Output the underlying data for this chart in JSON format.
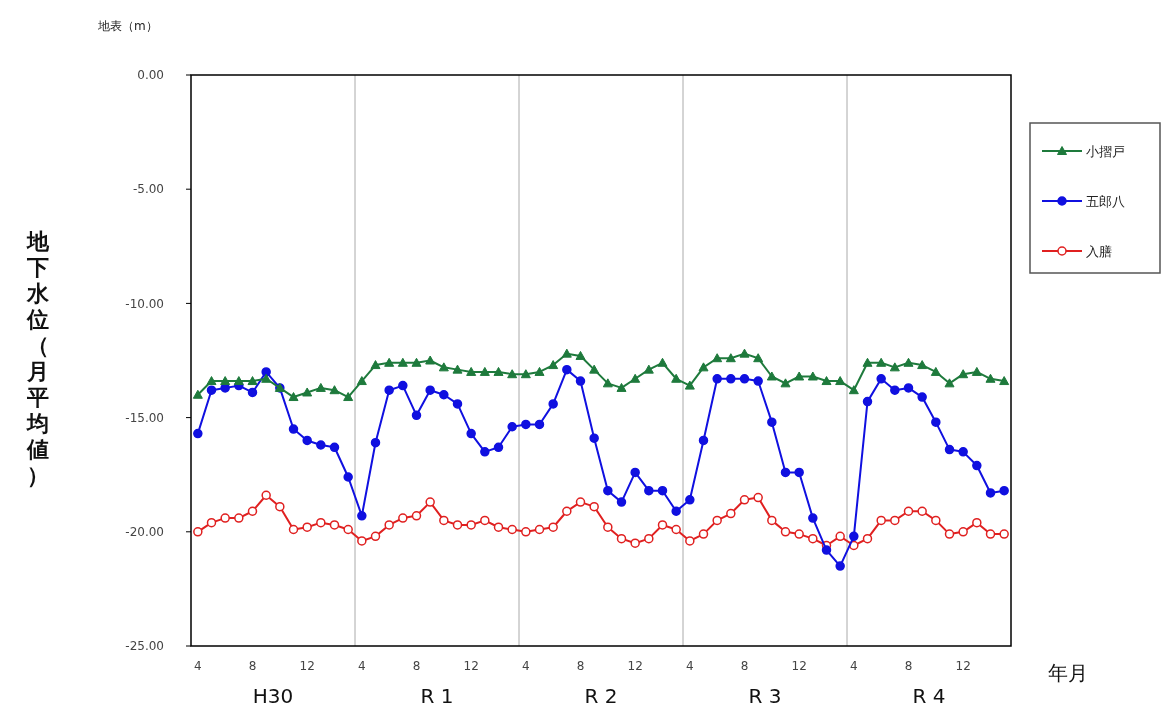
{
  "chart_data": {
    "type": "line",
    "xlabel": "年月",
    "ylabel": "地下水位（月平均値）",
    "annotations": [
      "地表（m）",
      "H30",
      "R 1",
      "R 2",
      "R 3",
      "R 4"
    ],
    "categories": [
      "4",
      null,
      null,
      null,
      "8",
      null,
      null,
      null,
      "12",
      null,
      null,
      null,
      "4",
      null,
      null,
      null,
      "8",
      null,
      null,
      null,
      "12",
      null,
      null,
      null,
      "4",
      null,
      null,
      null,
      "8",
      null,
      null,
      null,
      "12",
      null,
      null,
      null,
      "4",
      null,
      null,
      null,
      "8",
      null,
      null,
      null,
      "12",
      null,
      null,
      null,
      "4",
      null,
      null,
      null,
      "8",
      null,
      null,
      null,
      "12",
      null,
      null,
      null
    ],
    "ylim": [
      -25,
      0
    ],
    "yticks": [
      {
        "value": 0,
        "label": "0.00"
      },
      {
        "value": -5,
        "label": "-5.00"
      },
      {
        "value": -10,
        "label": "-10.00"
      },
      {
        "value": -15,
        "label": "-15.00"
      },
      {
        "value": -20,
        "label": "-20.00"
      },
      {
        "value": -25,
        "label": "-25.00"
      }
    ],
    "legend": "top right",
    "grid": false,
    "series": [
      {
        "name": "小摺戸",
        "color": "#1e7a3c",
        "marker": "triangle",
        "values": [
          -14.0,
          -13.4,
          -13.4,
          -13.4,
          -13.4,
          -13.3,
          -13.7,
          -14.1,
          -13.9,
          -13.7,
          -13.8,
          -14.1,
          -13.4,
          -12.7,
          -12.6,
          -12.6,
          -12.6,
          -12.5,
          -12.8,
          -12.9,
          -13.0,
          -13.0,
          -13.0,
          -13.1,
          -13.1,
          -13.0,
          -12.7,
          -12.2,
          -12.3,
          -12.9,
          -13.5,
          -13.7,
          -13.3,
          -12.9,
          -12.6,
          -13.3,
          -13.6,
          -12.8,
          -12.4,
          -12.4,
          -12.2,
          -12.4,
          -13.2,
          -13.5,
          -13.2,
          -13.2,
          -13.4,
          -13.4,
          -13.8,
          -12.6,
          -12.6,
          -12.8,
          -12.6,
          -12.7,
          -13.0,
          -13.5,
          -13.1,
          -13.0,
          -13.3,
          -13.4
        ]
      },
      {
        "name": "五郎八",
        "color": "#1010e0",
        "marker": "circle",
        "values": [
          -15.7,
          -13.8,
          -13.7,
          -13.6,
          -13.9,
          -13.0,
          -13.7,
          -15.5,
          -16.0,
          -16.2,
          -16.3,
          -17.6,
          -19.3,
          -16.1,
          -13.8,
          -13.6,
          -14.9,
          -13.8,
          -14.0,
          -14.4,
          -15.7,
          -16.5,
          -16.3,
          -15.4,
          -15.3,
          -15.3,
          -14.4,
          -12.9,
          -13.4,
          -15.9,
          -18.2,
          -18.7,
          -17.4,
          -18.2,
          -18.2,
          -19.1,
          -18.6,
          -16.0,
          -13.3,
          -13.3,
          -13.3,
          -13.4,
          -15.2,
          -17.4,
          -17.4,
          -19.4,
          -20.8,
          -21.5,
          -20.2,
          -14.3,
          -13.3,
          -13.8,
          -13.7,
          -14.1,
          -15.2,
          -16.4,
          -16.5,
          -17.1,
          -18.3,
          -18.2
        ]
      },
      {
        "name": "入膳",
        "color": "#e02020",
        "marker": "circle",
        "values": [
          -20.0,
          -19.6,
          -19.4,
          -19.4,
          -19.1,
          -18.4,
          -18.9,
          -19.9,
          -19.8,
          -19.6,
          -19.7,
          -19.9,
          -20.4,
          -20.2,
          -19.7,
          -19.4,
          -19.3,
          -18.7,
          -19.5,
          -19.7,
          -19.7,
          -19.5,
          -19.8,
          -19.9,
          -20.0,
          -19.9,
          -19.8,
          -19.1,
          -18.7,
          -18.9,
          -19.8,
          -20.3,
          -20.5,
          -20.3,
          -19.7,
          -19.9,
          -20.4,
          -20.1,
          -19.5,
          -19.2,
          -18.6,
          -18.5,
          -19.5,
          -20.0,
          -20.1,
          -20.3,
          -20.6,
          -20.2,
          -20.6,
          -20.3,
          -19.5,
          -19.5,
          -19.1,
          -19.1,
          -19.5,
          -20.1,
          -20.0,
          -19.6,
          -20.1,
          -20.1
        ]
      }
    ]
  }
}
